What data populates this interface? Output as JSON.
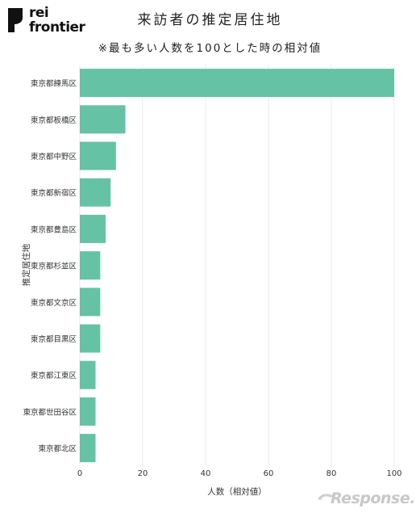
{
  "logo": {
    "line1": "rei",
    "line2": "frontier"
  },
  "watermark": {
    "text": "Response."
  },
  "colors": {
    "bar": "#66c2a5",
    "grid": "#e8e8e8",
    "text": "#222222"
  },
  "chart_data": {
    "type": "bar",
    "orientation": "horizontal",
    "title": "来訪者の推定居住地",
    "subtitle": "※最も多い人数を100とした時の相対値",
    "xlabel": "人数（相対値）",
    "ylabel": "推定居住地",
    "xlim": [
      0,
      100
    ],
    "xticks": [
      0,
      20,
      40,
      60,
      80,
      100
    ],
    "grid": true,
    "categories": [
      "東京都練馬区",
      "東京都板橋区",
      "東京都中野区",
      "東京都新宿区",
      "東京都豊島区",
      "東京都杉並区",
      "東京都文京区",
      "東京都目黒区",
      "東京都江東区",
      "東京都世田谷区",
      "東京都北区"
    ],
    "values": [
      100,
      14.5,
      11.5,
      9.8,
      8.2,
      6.5,
      6.5,
      6.5,
      5.0,
      5.0,
      5.0
    ]
  }
}
